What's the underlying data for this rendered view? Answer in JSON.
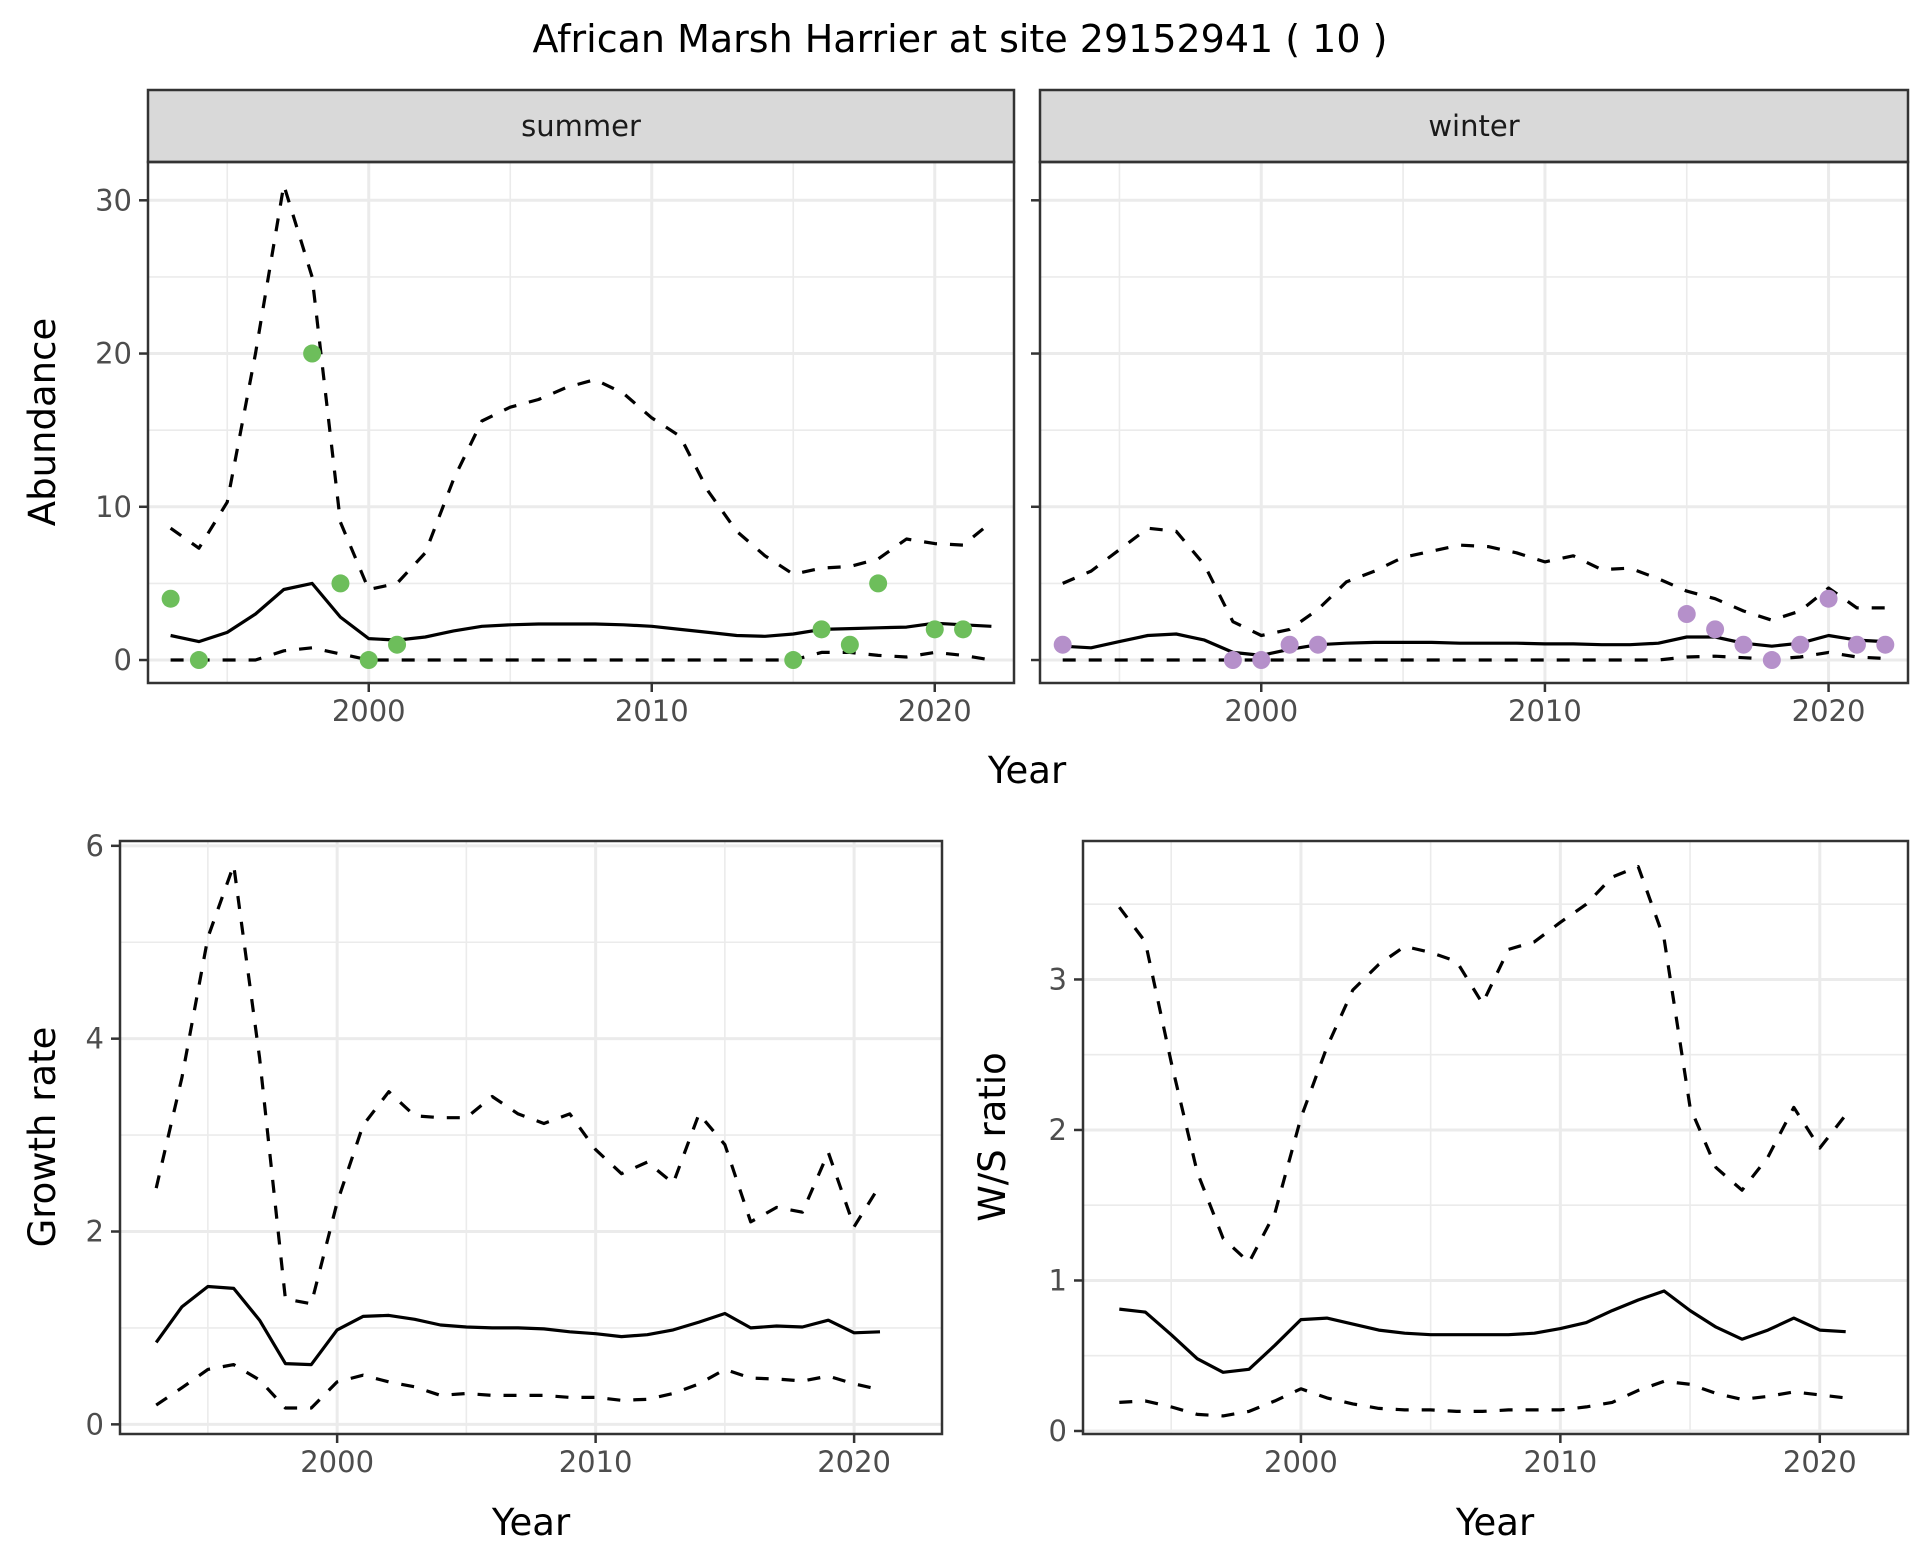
{
  "title": "African Marsh Harrier at site 29152941 ( 10 )",
  "colors": {
    "summer_points": "#6DBE5B",
    "winter_points": "#B590CA",
    "line": "#000000",
    "strip_fill": "#D9D9D9",
    "grid": "#EBEBEB"
  },
  "chart_data": [
    {
      "type": "line",
      "panel": "summer",
      "strip_label": "summer",
      "xlabel": "Year",
      "ylabel": "Abundance",
      "xlim": [
        1992.2,
        2022.8
      ],
      "ylim": [
        -1.5,
        32.5
      ],
      "xticks": [
        2000,
        2010,
        2020
      ],
      "yticks": [
        0,
        10,
        20,
        30
      ],
      "grid": true,
      "series": [
        {
          "name": "mean",
          "style": "solid",
          "x": [
            1993,
            1994,
            1995,
            1996,
            1997,
            1998,
            1999,
            2000,
            2001,
            2002,
            2003,
            2004,
            2005,
            2006,
            2007,
            2008,
            2009,
            2010,
            2011,
            2012,
            2013,
            2014,
            2015,
            2016,
            2017,
            2018,
            2019,
            2020,
            2021,
            2022
          ],
          "y": [
            1.6,
            1.2,
            1.8,
            3.0,
            4.6,
            5.0,
            2.8,
            1.4,
            1.3,
            1.5,
            1.9,
            2.2,
            2.3,
            2.35,
            2.35,
            2.35,
            2.3,
            2.2,
            2.0,
            1.8,
            1.6,
            1.55,
            1.7,
            2.0,
            2.05,
            2.1,
            2.15,
            2.4,
            2.3,
            2.2
          ]
        },
        {
          "name": "upper",
          "style": "dashed",
          "x": [
            1993,
            1994,
            1995,
            1996,
            1997,
            1998,
            1999,
            2000,
            2001,
            2002,
            2003,
            2004,
            2005,
            2006,
            2007,
            2008,
            2009,
            2010,
            2011,
            2012,
            2013,
            2014,
            2015,
            2016,
            2017,
            2018,
            2019,
            2020,
            2021,
            2022
          ],
          "y": [
            8.6,
            7.3,
            10.3,
            20.0,
            31.0,
            25.0,
            9.0,
            4.6,
            5.0,
            7.0,
            11.8,
            15.6,
            16.5,
            17.0,
            17.8,
            18.3,
            17.4,
            15.8,
            14.6,
            11.0,
            8.4,
            6.8,
            5.6,
            6.0,
            6.1,
            6.6,
            7.9,
            7.6,
            7.5,
            9.0
          ]
        },
        {
          "name": "lower",
          "style": "dashed",
          "x": [
            1993,
            1994,
            1995,
            1996,
            1997,
            1998,
            1999,
            2000,
            2001,
            2002,
            2003,
            2004,
            2005,
            2006,
            2007,
            2008,
            2009,
            2010,
            2011,
            2012,
            2013,
            2014,
            2015,
            2016,
            2017,
            2018,
            2019,
            2020,
            2021,
            2022
          ],
          "y": [
            0,
            0,
            0,
            0,
            0.6,
            0.8,
            0.4,
            0,
            0,
            0,
            0,
            0,
            0,
            0,
            0,
            0,
            0,
            0,
            0,
            0,
            0,
            0,
            0,
            0.5,
            0.5,
            0.3,
            0.2,
            0.5,
            0.3,
            0
          ]
        },
        {
          "name": "observed",
          "style": "points",
          "x": [
            1993,
            1994,
            1998,
            1999,
            2000,
            2001,
            2015,
            2016,
            2017,
            2018,
            2020,
            2021
          ],
          "y": [
            4,
            0,
            20,
            5,
            0,
            1,
            0,
            2,
            1,
            5,
            2,
            2
          ]
        }
      ]
    },
    {
      "type": "line",
      "panel": "winter",
      "strip_label": "winter",
      "xlabel": "Year",
      "ylabel": "Abundance",
      "xlim": [
        1992.2,
        2022.8
      ],
      "ylim": [
        -1.5,
        32.5
      ],
      "xticks": [
        2000,
        2010,
        2020
      ],
      "yticks": [
        0,
        10,
        20,
        30
      ],
      "grid": true,
      "series": [
        {
          "name": "mean",
          "style": "solid",
          "x": [
            1993,
            1994,
            1995,
            1996,
            1997,
            1998,
            1999,
            2000,
            2001,
            2002,
            2003,
            2004,
            2005,
            2006,
            2007,
            2008,
            2009,
            2010,
            2011,
            2012,
            2013,
            2014,
            2015,
            2016,
            2017,
            2018,
            2019,
            2020,
            2021,
            2022
          ],
          "y": [
            0.9,
            0.8,
            1.2,
            1.6,
            1.7,
            1.3,
            0.5,
            0.3,
            0.7,
            1.0,
            1.1,
            1.15,
            1.15,
            1.15,
            1.1,
            1.1,
            1.1,
            1.05,
            1.05,
            1.0,
            1.0,
            1.1,
            1.5,
            1.5,
            1.1,
            0.9,
            1.1,
            1.6,
            1.3,
            1.2
          ]
        },
        {
          "name": "upper",
          "style": "dashed",
          "x": [
            1993,
            1994,
            1995,
            1996,
            1997,
            1998,
            1999,
            2000,
            2001,
            2002,
            2003,
            2004,
            2005,
            2006,
            2007,
            2008,
            2009,
            2010,
            2011,
            2012,
            2013,
            2014,
            2015,
            2016,
            2017,
            2018,
            2019,
            2020,
            2021,
            2022
          ],
          "y": [
            5.0,
            5.8,
            7.2,
            8.6,
            8.4,
            6.2,
            2.5,
            1.6,
            2.0,
            3.3,
            5.1,
            5.8,
            6.7,
            7.1,
            7.5,
            7.4,
            7.0,
            6.4,
            6.8,
            5.9,
            6.0,
            5.3,
            4.5,
            4.0,
            3.2,
            2.6,
            3.2,
            4.7,
            3.4,
            3.4
          ]
        },
        {
          "name": "lower",
          "style": "dashed",
          "x": [
            1993,
            1994,
            1995,
            1996,
            1997,
            1998,
            1999,
            2000,
            2001,
            2002,
            2003,
            2004,
            2005,
            2006,
            2007,
            2008,
            2009,
            2010,
            2011,
            2012,
            2013,
            2014,
            2015,
            2016,
            2017,
            2018,
            2019,
            2020,
            2021,
            2022
          ],
          "y": [
            0,
            0,
            0,
            0,
            0,
            0,
            0,
            0,
            0,
            0,
            0,
            0,
            0,
            0,
            0,
            0,
            0,
            0,
            0,
            0,
            0,
            0,
            0.2,
            0.25,
            0.15,
            0.05,
            0.2,
            0.5,
            0.2,
            0.1
          ]
        },
        {
          "name": "observed",
          "style": "points",
          "x": [
            1993,
            1999,
            2000,
            2001,
            2002,
            2015,
            2016,
            2017,
            2018,
            2019,
            2020,
            2021,
            2022
          ],
          "y": [
            1,
            0,
            0,
            1,
            1,
            3,
            2,
            1,
            0,
            1,
            4,
            1,
            1
          ]
        }
      ]
    },
    {
      "type": "line",
      "panel": "growth",
      "xlabel": "Year",
      "ylabel": "Growth rate",
      "xlim": [
        1991.6,
        2023.4
      ],
      "ylim": [
        -0.1,
        6.05
      ],
      "xticks": [
        2000,
        2010,
        2020
      ],
      "yticks": [
        0,
        2,
        4,
        6
      ],
      "grid": true,
      "series": [
        {
          "name": "mean",
          "style": "solid",
          "x": [
            1993,
            1994,
            1995,
            1996,
            1997,
            1998,
            1999,
            2000,
            2001,
            2002,
            2003,
            2004,
            2005,
            2006,
            2007,
            2008,
            2009,
            2010,
            2011,
            2012,
            2013,
            2014,
            2015,
            2016,
            2017,
            2018,
            2019,
            2020,
            2021
          ],
          "y": [
            0.85,
            1.22,
            1.43,
            1.41,
            1.08,
            0.63,
            0.62,
            0.98,
            1.12,
            1.13,
            1.09,
            1.03,
            1.01,
            1.0,
            1.0,
            0.99,
            0.96,
            0.94,
            0.91,
            0.93,
            0.98,
            1.06,
            1.15,
            1.0,
            1.02,
            1.01,
            1.08,
            0.95,
            0.96
          ]
        },
        {
          "name": "upper",
          "style": "dashed",
          "x": [
            1993,
            1994,
            1995,
            1996,
            1997,
            1998,
            1999,
            2000,
            2001,
            2002,
            2003,
            2004,
            2005,
            2006,
            2007,
            2008,
            2009,
            2010,
            2011,
            2012,
            2013,
            2014,
            2015,
            2016,
            2017,
            2018,
            2019,
            2020,
            2021
          ],
          "y": [
            2.45,
            3.6,
            5.05,
            5.8,
            3.8,
            1.3,
            1.25,
            2.3,
            3.1,
            3.45,
            3.2,
            3.18,
            3.18,
            3.4,
            3.22,
            3.12,
            3.22,
            2.85,
            2.6,
            2.72,
            2.5,
            3.22,
            2.9,
            2.1,
            2.25,
            2.2,
            2.82,
            2.05,
            2.48
          ]
        },
        {
          "name": "lower",
          "style": "dashed",
          "x": [
            1993,
            1994,
            1995,
            1996,
            1997,
            1998,
            1999,
            2000,
            2001,
            2002,
            2003,
            2004,
            2005,
            2006,
            2007,
            2008,
            2009,
            2010,
            2011,
            2012,
            2013,
            2014,
            2015,
            2016,
            2017,
            2018,
            2019,
            2020,
            2021
          ],
          "y": [
            0.2,
            0.38,
            0.57,
            0.62,
            0.46,
            0.17,
            0.17,
            0.44,
            0.51,
            0.44,
            0.39,
            0.3,
            0.32,
            0.3,
            0.3,
            0.3,
            0.28,
            0.28,
            0.25,
            0.26,
            0.32,
            0.42,
            0.57,
            0.48,
            0.47,
            0.45,
            0.5,
            0.42,
            0.36
          ]
        }
      ]
    },
    {
      "type": "line",
      "panel": "ratio",
      "xlabel": "Year",
      "ylabel": "W/S ratio",
      "xlim": [
        1991.6,
        2023.4
      ],
      "ylim": [
        -0.02,
        3.92
      ],
      "xticks": [
        2000,
        2010,
        2020
      ],
      "yticks": [
        0,
        1,
        2,
        3
      ],
      "grid": true,
      "series": [
        {
          "name": "mean",
          "style": "solid",
          "x": [
            1993,
            1994,
            1995,
            1996,
            1997,
            1998,
            1999,
            2000,
            2001,
            2002,
            2003,
            2004,
            2005,
            2006,
            2007,
            2008,
            2009,
            2010,
            2011,
            2012,
            2013,
            2014,
            2015,
            2016,
            2017,
            2018,
            2019,
            2020,
            2021
          ],
          "y": [
            0.81,
            0.79,
            0.64,
            0.48,
            0.39,
            0.41,
            0.57,
            0.74,
            0.75,
            0.71,
            0.67,
            0.65,
            0.64,
            0.64,
            0.64,
            0.64,
            0.65,
            0.68,
            0.72,
            0.8,
            0.87,
            0.93,
            0.8,
            0.69,
            0.61,
            0.67,
            0.75,
            0.67,
            0.66
          ]
        },
        {
          "name": "upper",
          "style": "dashed",
          "x": [
            1993,
            1994,
            1995,
            1996,
            1997,
            1998,
            1999,
            2000,
            2001,
            2002,
            2003,
            2004,
            2005,
            2006,
            2007,
            2008,
            2009,
            2010,
            2011,
            2012,
            2013,
            2014,
            2015,
            2016,
            2017,
            2018,
            2019,
            2020,
            2021
          ],
          "y": [
            3.48,
            3.25,
            2.45,
            1.72,
            1.28,
            1.12,
            1.45,
            2.08,
            2.55,
            2.93,
            3.1,
            3.22,
            3.18,
            3.12,
            2.84,
            3.2,
            3.25,
            3.38,
            3.5,
            3.68,
            3.75,
            3.27,
            2.15,
            1.75,
            1.6,
            1.82,
            2.15,
            1.88,
            2.1
          ]
        },
        {
          "name": "lower",
          "style": "dashed",
          "x": [
            1993,
            1994,
            1995,
            1996,
            1997,
            1998,
            1999,
            2000,
            2001,
            2002,
            2003,
            2004,
            2005,
            2006,
            2007,
            2008,
            2009,
            2010,
            2011,
            2012,
            2013,
            2014,
            2015,
            2016,
            2017,
            2018,
            2019,
            2020,
            2021
          ],
          "y": [
            0.19,
            0.2,
            0.16,
            0.11,
            0.1,
            0.13,
            0.2,
            0.28,
            0.22,
            0.18,
            0.15,
            0.14,
            0.14,
            0.13,
            0.13,
            0.14,
            0.14,
            0.14,
            0.16,
            0.19,
            0.27,
            0.33,
            0.31,
            0.25,
            0.21,
            0.23,
            0.26,
            0.24,
            0.22
          ]
        }
      ]
    }
  ]
}
